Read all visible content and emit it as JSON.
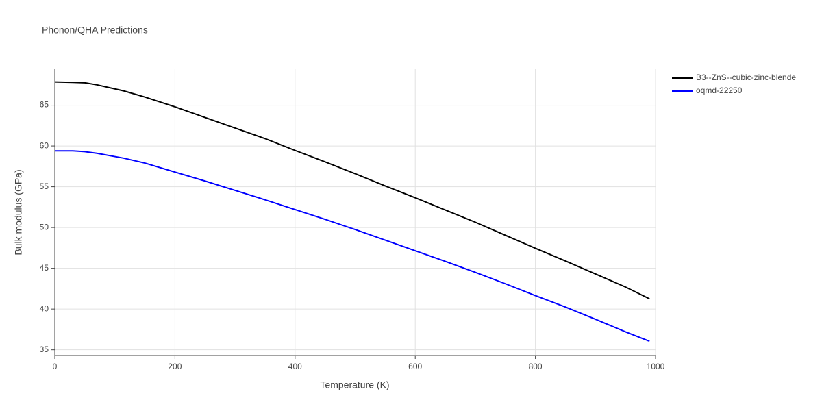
{
  "chart_data": {
    "type": "line",
    "title": "Phonon/QHA Predictions",
    "x_label": "Temperature (K)",
    "y_label": "Bulk modulus (GPa)",
    "x": [
      0,
      30,
      50,
      70,
      100,
      115,
      150,
      200,
      250,
      300,
      350,
      400,
      450,
      500,
      550,
      600,
      650,
      700,
      750,
      800,
      850,
      900,
      950,
      990
    ],
    "series": [
      {
        "name": "B3--ZnS--cubic-zinc-blende",
        "color": "#000000",
        "values": [
          67.85,
          67.8,
          67.75,
          67.5,
          67.0,
          66.75,
          66.0,
          64.8,
          63.5,
          62.2,
          60.9,
          59.45,
          58.05,
          56.6,
          55.1,
          53.65,
          52.15,
          50.65,
          49.05,
          47.45,
          45.9,
          44.3,
          42.7,
          41.25
        ]
      },
      {
        "name": "oqmd-22250",
        "color": "#0000ff",
        "values": [
          59.4,
          59.4,
          59.3,
          59.1,
          58.7,
          58.5,
          57.9,
          56.8,
          55.7,
          54.55,
          53.4,
          52.2,
          51.0,
          49.75,
          48.45,
          47.15,
          45.85,
          44.5,
          43.1,
          41.65,
          40.25,
          38.75,
          37.2,
          36.05
        ]
      }
    ],
    "xlim": [
      0,
      1000
    ],
    "xticks": [
      0,
      200,
      400,
      600,
      800,
      1000
    ],
    "ylim": [
      34.3,
      69.5
    ],
    "yticks": [
      35,
      40,
      45,
      50,
      55,
      60,
      65
    ],
    "grid": true,
    "legend": "top-right"
  }
}
